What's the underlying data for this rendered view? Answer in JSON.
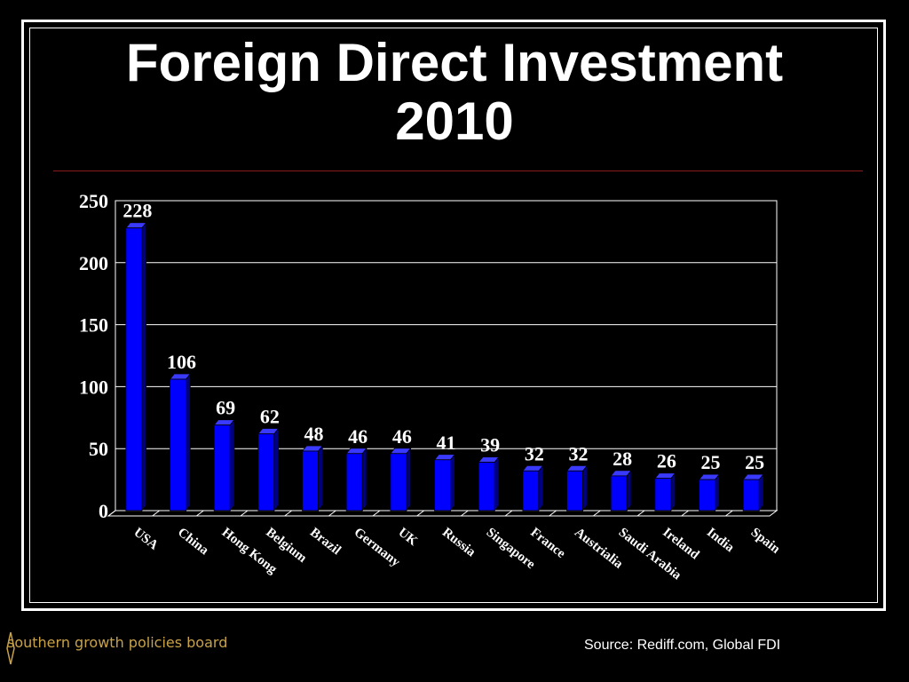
{
  "slide": {
    "title_line1": "Foreign Direct Investment",
    "title_line2": "2010",
    "logo_text": "southern growth policies board",
    "source": "Source: Rediff.com, Global FDI"
  },
  "colors": {
    "background": "#000000",
    "bar_front": "#0000ff",
    "bar_top": "#3a3aff",
    "bar_side": "#000080",
    "plot_area": "#000000",
    "gridline": "#ffffff",
    "text": "#ffffff",
    "rule": "#8b1a1a",
    "logo": "#c8a24a"
  },
  "chart_data": {
    "type": "bar",
    "categories": [
      "USA",
      "China",
      "Hong Kong",
      "Belgium",
      "Brazil",
      "Germany",
      "UK",
      "Russia",
      "Singapore",
      "France",
      "Austrialia",
      "Saudi Arabia",
      "Ireland",
      "India",
      "Spain"
    ],
    "values": [
      228,
      106,
      69,
      62,
      48,
      46,
      46,
      41,
      39,
      32,
      32,
      28,
      26,
      25,
      25
    ],
    "data_labels": [
      "228",
      "106",
      "69",
      "62",
      "48",
      "46",
      "46",
      "41",
      "39",
      "32",
      "32",
      "28",
      "26",
      "25",
      "25"
    ],
    "ylim": [
      0,
      250
    ],
    "yticks": [
      0,
      50,
      100,
      150,
      200,
      250
    ],
    "grid": true,
    "legend": "none",
    "style": "3d-bar"
  }
}
